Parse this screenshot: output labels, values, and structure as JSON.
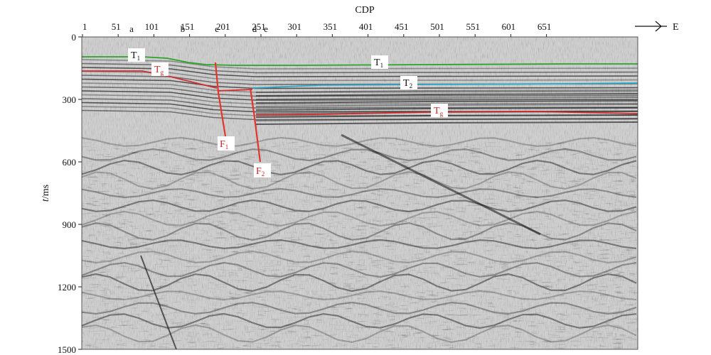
{
  "figure": {
    "x_axis_title": "CDP",
    "x_ticks": [
      "1",
      "51",
      "101",
      "151",
      "201",
      "251",
      "301",
      "351",
      "401",
      "451",
      "501",
      "551",
      "601",
      "651"
    ],
    "y_axis_title_italic": "t",
    "y_axis_title_unit": "/ms",
    "y_ticks": [
      "0",
      "300",
      "600",
      "900",
      "1200",
      "1500"
    ],
    "direction_label": "E",
    "site_markers": [
      "a",
      "b",
      "c",
      "d",
      "e"
    ],
    "horizons": [
      {
        "name": "T",
        "subscript": "1",
        "color": "#2aa52a"
      },
      {
        "name": "T",
        "subscript": "2",
        "color": "#29a9c9"
      },
      {
        "name": "T",
        "subscript": "g",
        "color": "#d42a2a"
      }
    ],
    "faults": [
      {
        "name": "F",
        "subscript": "1",
        "color": "#e0362c"
      },
      {
        "name": "F",
        "subscript": "2",
        "color": "#e0362c"
      }
    ]
  }
}
